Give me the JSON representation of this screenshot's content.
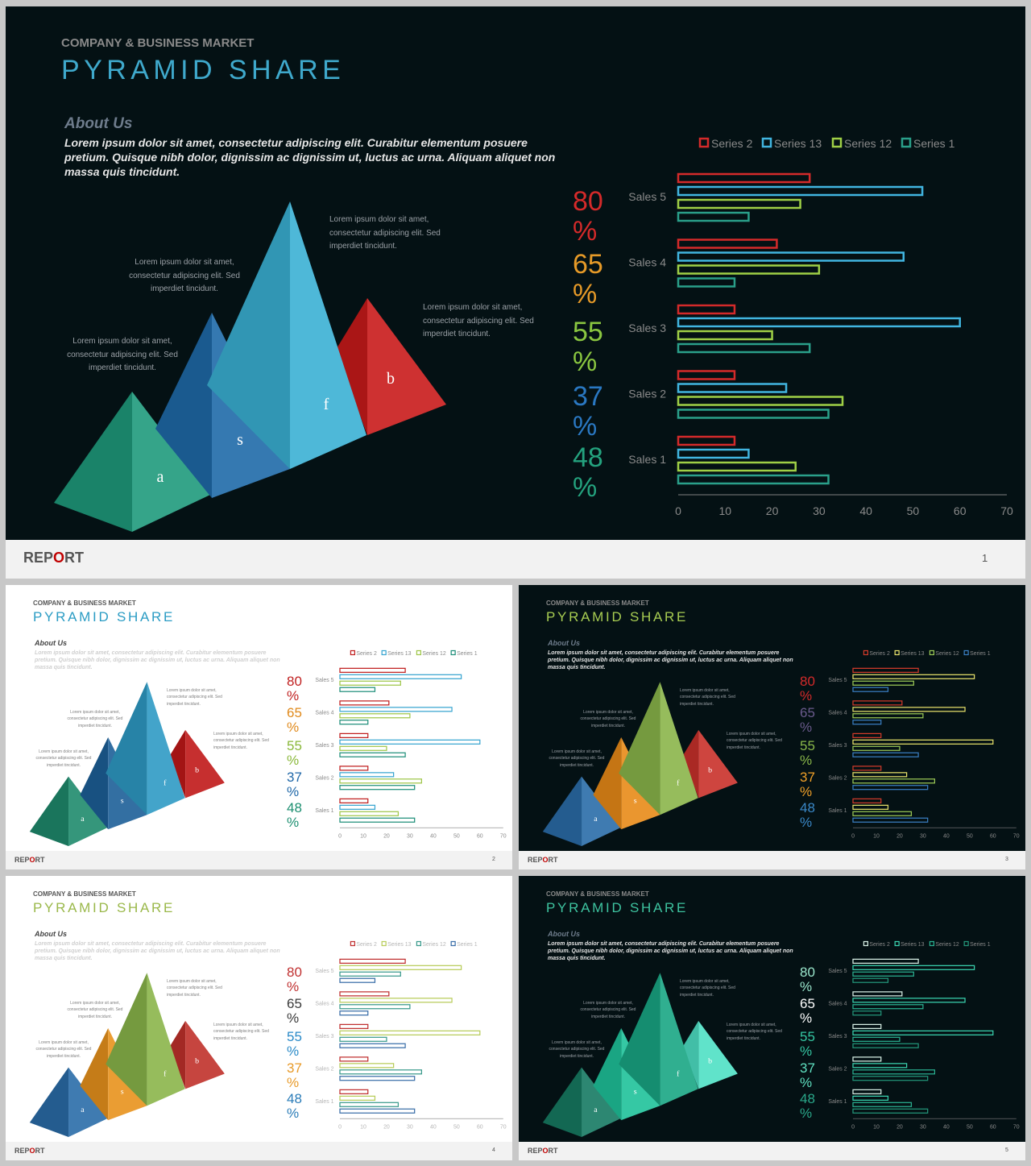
{
  "common": {
    "kicker": "COMPANY & BUSINESS MARKET",
    "title": "PYRAMID SHARE",
    "about_heading": "About Us",
    "about_body": "Lorem ipsum dolor sit amet, consectetur adipiscing elit. Curabitur  elementum posuere pretium. Quisque nibh dolor, dignissim ac dignissim ut, luctus ac urna. Aliquam aliquet non massa quis tincidunt.",
    "note_text": "Lorem ipsum dolor sit amet, consectetur adipiscing elit. Sed imperdiet tincidunt.",
    "pyramid_letters": [
      "a",
      "s",
      "f",
      "b"
    ],
    "percents": [
      "80 %",
      "65 %",
      "55 %",
      "37 %",
      "48 %"
    ],
    "footer_brand_pre": "REP",
    "footer_brand_o": "O",
    "footer_brand_post": "RT"
  },
  "slides": [
    {
      "page": "1",
      "bg": "#041114",
      "title_color": "#3fa9cc",
      "kicker_color": "#8a8a8a",
      "about_color": "#6e7c8c",
      "body_color": "#e6e6e6",
      "note_color": "#9aa0a6",
      "tick_color": "#8a8a8a",
      "pyramid_colors": [
        "#1e9a7c",
        "#1e6aa8",
        "#3ab0d4",
        "#c81a1a"
      ],
      "percent_colors": [
        "#d42a2a",
        "#e69a28",
        "#8ac640",
        "#2a78c2",
        "#24a27e"
      ],
      "series_colors": [
        "#d42a2a",
        "#41b5e0",
        "#9fd046",
        "#2aa08a"
      ],
      "footer_color": "#f2f2f2"
    },
    {
      "page": "2",
      "bg": "#ffffff",
      "title_color": "#2b9cc4",
      "kicker_color": "#555555",
      "about_color": "#444444",
      "body_color": "#cfcfcf",
      "note_color": "#7f7f7f",
      "tick_color": "#8a8a8a",
      "pyramid_colors": [
        "#1f8a6c",
        "#1c5f98",
        "#2e9ac4",
        "#c01818"
      ],
      "percent_colors": [
        "#c02020",
        "#e08a1c",
        "#8ab83a",
        "#1f67a8",
        "#1c8f70"
      ],
      "series_colors": [
        "#c02020",
        "#39a5d0",
        "#9fc64a",
        "#1f8f7a"
      ],
      "footer_color": "#f2f2f2"
    },
    {
      "page": "3",
      "bg": "#041114",
      "title_color": "#a8cd52",
      "kicker_color": "#8a8a8a",
      "about_color": "#6e7c8c",
      "body_color": "#e6e6e6",
      "note_color": "#9aa0a6",
      "tick_color": "#8a8a8a",
      "pyramid_colors": [
        "#2a6ca8",
        "#e88a18",
        "#8ab54a",
        "#c8302a"
      ],
      "percent_colors": [
        "#d42a2a",
        "#6a5a8c",
        "#8ab84a",
        "#f0a028",
        "#3a88c8"
      ],
      "series_colors": [
        "#d03a2a",
        "#e6e06a",
        "#9ac856",
        "#3a7ec2"
      ],
      "footer_color": "#f2f2f2"
    },
    {
      "page": "4",
      "bg": "#ffffff",
      "title_color": "#9ab84a",
      "kicker_color": "#555555",
      "about_color": "#444444",
      "body_color": "#cfcfcf",
      "note_color": "#7f7f7f",
      "tick_color": "#b5b5b5",
      "pyramid_colors": [
        "#2a6ca8",
        "#e8921c",
        "#8ab54a",
        "#c0302a"
      ],
      "percent_colors": [
        "#c03030",
        "#3a3a3a",
        "#2a8ac8",
        "#e89a28",
        "#2a7cb8"
      ],
      "series_colors": [
        "#c03030",
        "#b8cc5a",
        "#3a9a8c",
        "#3a6ea8"
      ],
      "footer_color": "#f2f2f2"
    },
    {
      "page": "5",
      "bg": "#041114",
      "title_color": "#3ec4a0",
      "kicker_color": "#8a8a8a",
      "about_color": "#6e7c8c",
      "body_color": "#e6e6e6",
      "note_color": "#9aa0a6",
      "tick_color": "#8a8a8a",
      "pyramid_colors": [
        "#167a62",
        "#1fc29a",
        "#19a684",
        "#4ee0c4"
      ],
      "percent_colors": [
        "#9ae6cc",
        "#ffffff",
        "#35c7a3",
        "#5fe0c0",
        "#2aa88a"
      ],
      "series_colors": [
        "#d8f0e6",
        "#3ad4b0",
        "#2ab090",
        "#23967a"
      ],
      "footer_color": "#f2f2f2"
    }
  ],
  "chart_data": {
    "type": "bar",
    "orientation": "horizontal",
    "categories": [
      "Sales 1",
      "Sales 2",
      "Sales 3",
      "Sales 4",
      "Sales 5"
    ],
    "series": [
      {
        "name": "Series 2",
        "values": [
          12,
          12,
          12,
          21,
          28
        ]
      },
      {
        "name": "Series 13",
        "values": [
          15,
          23,
          60,
          48,
          52
        ]
      },
      {
        "name": "Series 12",
        "values": [
          25,
          35,
          20,
          30,
          26
        ]
      },
      {
        "name": "Series 1",
        "values": [
          32,
          32,
          28,
          12,
          15
        ]
      }
    ],
    "xlim": [
      0,
      70
    ],
    "xticks": [
      0,
      10,
      20,
      30,
      40,
      50,
      60,
      70
    ],
    "legend_position": "top",
    "grid": false
  }
}
